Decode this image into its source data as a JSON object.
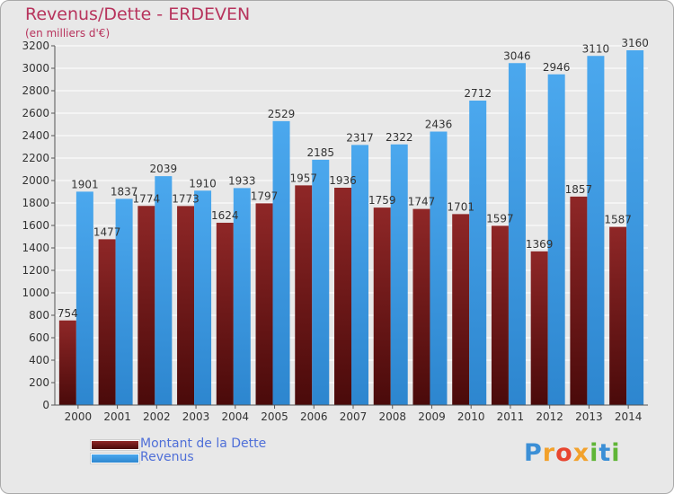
{
  "header": {
    "title": "Revenus/Dette - ERDEVEN",
    "subtitle": "(en milliers d'€)"
  },
  "legend": {
    "items": [
      {
        "label": "Montant de la Dette",
        "color": "#7a1515"
      },
      {
        "label": "Revenus",
        "color": "#3f9fe8"
      }
    ]
  },
  "logo": {
    "letters": [
      "P",
      "r",
      "o",
      "x",
      "i",
      "t",
      "i"
    ],
    "colors": [
      "#3b8fd6",
      "#f2a12b",
      "#e8452f",
      "#f2a12b",
      "#5fb536",
      "#3b8fd6",
      "#5fb536"
    ]
  },
  "chart_data": {
    "type": "bar",
    "title": "Revenus/Dette - ERDEVEN",
    "ylabel": "(en milliers d'€)",
    "xlabel": "",
    "ylim": [
      0,
      3200
    ],
    "yticks": [
      0,
      200,
      400,
      600,
      800,
      1000,
      1200,
      1400,
      1600,
      1800,
      2000,
      2200,
      2400,
      2600,
      2800,
      3000,
      3200
    ],
    "categories": [
      "2000",
      "2001",
      "2002",
      "2003",
      "2004",
      "2005",
      "2006",
      "2007",
      "2008",
      "2009",
      "2010",
      "2011",
      "2012",
      "2013",
      "2014"
    ],
    "series": [
      {
        "name": "Montant de la Dette",
        "color": "#7a1515",
        "values": [
          754,
          1477,
          1774,
          1773,
          1624,
          1797,
          1957,
          1936,
          1759,
          1747,
          1701,
          1597,
          1369,
          1857,
          1587
        ],
        "labels": [
          "754",
          "1477",
          "1774",
          "1773",
          "1624",
          "1797",
          "1957",
          "1936",
          "1759",
          "1747",
          "1701",
          "1597",
          "1369",
          "1857",
          "1587"
        ]
      },
      {
        "name": "Revenus",
        "color": "#3f9fe8",
        "values": [
          1901,
          1837,
          2039,
          1910,
          1933,
          2529,
          2185,
          2317,
          2322,
          2436,
          2712,
          3046,
          2946,
          3110,
          3160
        ],
        "labels": [
          "1901",
          "1837",
          "2039",
          "1910",
          "1933",
          "2529",
          "2185",
          "2317",
          "2322",
          "2436",
          "2712",
          "3046",
          "2946",
          "3110",
          "3160"
        ]
      }
    ],
    "grid": true,
    "legend_position": "bottom-left"
  }
}
